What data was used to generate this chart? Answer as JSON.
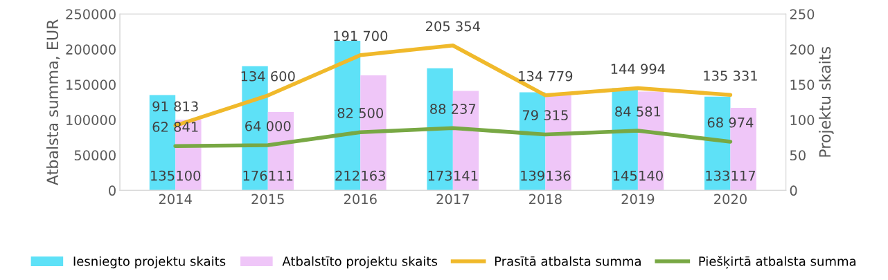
{
  "chart_data": {
    "type": "bar",
    "categories": [
      "2014",
      "2015",
      "2016",
      "2017",
      "2018",
      "2019",
      "2020"
    ],
    "ylabel": "Atbalsta summa, EUR",
    "y2label": "Projektu skaits",
    "ylim": [
      0,
      250000
    ],
    "yticks": [
      0,
      50000,
      100000,
      150000,
      200000,
      250000
    ],
    "y2lim": [
      0,
      250
    ],
    "y2ticks": [
      0,
      50,
      100,
      150,
      200,
      250
    ],
    "grid": false,
    "legend": "bottom",
    "series": [
      {
        "name": "Iesniegto projektu skaits",
        "axis": "y2",
        "color": "#5ee1f7",
        "values": [
          135,
          176,
          212,
          173,
          139,
          145,
          133
        ],
        "value_labels": [
          "135",
          "176",
          "212",
          "173",
          "139",
          "145",
          "133"
        ]
      },
      {
        "name": "Atbalstīto projektu skaits",
        "axis": "y2",
        "color": "#efc6f8",
        "values": [
          100,
          111,
          163,
          141,
          136,
          140,
          117
        ],
        "value_labels": [
          "100",
          "111",
          "163",
          "141",
          "136",
          "140",
          "117"
        ]
      },
      {
        "name": "Prasītā atbalsta summa",
        "type": "line",
        "axis": "y",
        "color": "#f0b92b",
        "values": [
          91813,
          134600,
          191700,
          205354,
          134779,
          144994,
          135331
        ],
        "value_labels": [
          "91 813",
          "134 600",
          "191 700",
          "205 354",
          "134 779",
          "144 994",
          "135 331"
        ]
      },
      {
        "name": "Piešķirtā atbalsta summa",
        "type": "line",
        "axis": "y",
        "color": "#78a844",
        "values": [
          62841,
          64000,
          82500,
          88237,
          79315,
          84581,
          68974
        ],
        "value_labels": [
          "62 841",
          "64 000",
          "82 500",
          "88 237",
          "79 315",
          "84 581",
          "68 974"
        ]
      }
    ]
  }
}
